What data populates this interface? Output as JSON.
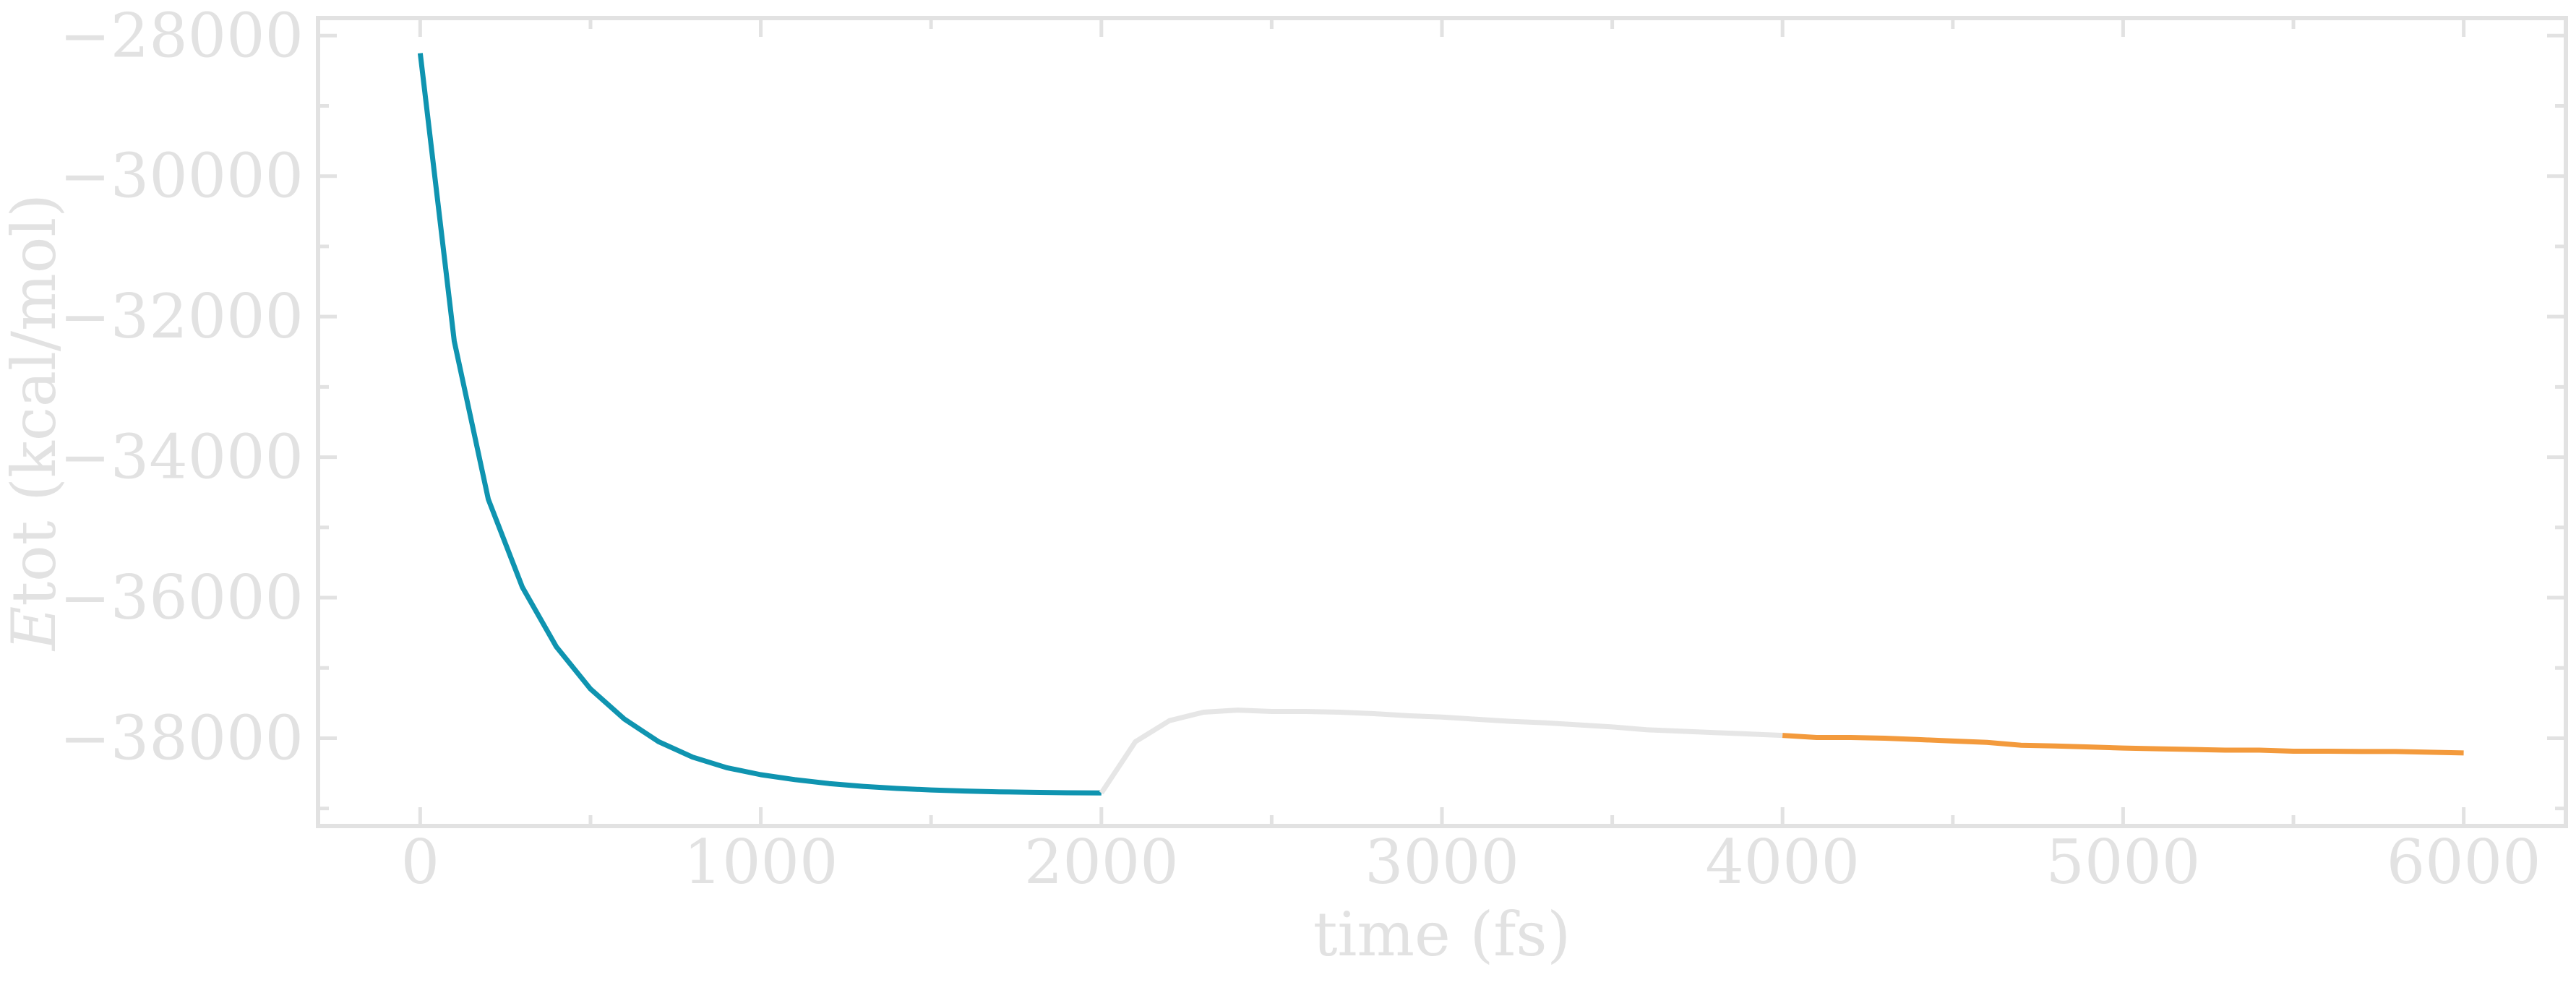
{
  "chart_data": {
    "type": "line",
    "xlabel": "time (fs)",
    "ylabel": "Etot (kcal/mol)",
    "ylabel_italic_part": "E",
    "ylabel_rest": "tot (kcal/mol)",
    "xlim": [
      -300,
      6300
    ],
    "ylim": [
      -39250,
      -27750
    ],
    "x_ticks": [
      0,
      1000,
      2000,
      3000,
      4000,
      5000,
      6000
    ],
    "x_tick_labels": [
      "0",
      "1000",
      "2000",
      "3000",
      "4000",
      "5000",
      "6000"
    ],
    "x_minor_ticks": [
      500,
      1500,
      2500,
      3500,
      4500,
      5500
    ],
    "y_ticks": [
      -28000,
      -30000,
      -32000,
      -34000,
      -36000,
      -38000
    ],
    "y_tick_labels": [
      "−28000",
      "−30000",
      "−32000",
      "−34000",
      "−36000",
      "−38000"
    ],
    "y_minor_ticks": [
      -29000,
      -31000,
      -33000,
      -35000,
      -37000,
      -39000
    ],
    "grid": false,
    "series": [
      {
        "color": "#0f94b0",
        "x": [
          0,
          100,
          200,
          300,
          400,
          500,
          600,
          700,
          800,
          900,
          1000,
          1100,
          1200,
          1300,
          1400,
          1500,
          1600,
          1700,
          1800,
          1900,
          2000
        ],
        "y": [
          -28250,
          -32350,
          -34600,
          -35850,
          -36700,
          -37300,
          -37730,
          -38050,
          -38270,
          -38420,
          -38520,
          -38590,
          -38645,
          -38685,
          -38715,
          -38737,
          -38752,
          -38763,
          -38771,
          -38777,
          -38780
        ]
      },
      {
        "color": "#e6e6e6",
        "x": [
          2000,
          2100,
          2200,
          2300,
          2400,
          2500,
          2600,
          2700,
          2800,
          2900,
          3000,
          3100,
          3200,
          3300,
          3400,
          3500,
          3600,
          3700,
          3800,
          3900,
          4000
        ],
        "y": [
          -38780,
          -38050,
          -37750,
          -37630,
          -37600,
          -37620,
          -37620,
          -37630,
          -37650,
          -37680,
          -37700,
          -37730,
          -37760,
          -37780,
          -37810,
          -37840,
          -37880,
          -37900,
          -37920,
          -37940,
          -37960
        ]
      },
      {
        "color": "#f39a3c",
        "x": [
          4000,
          4100,
          4200,
          4300,
          4400,
          4500,
          4600,
          4700,
          4800,
          4900,
          5000,
          5100,
          5200,
          5300,
          5400,
          5500,
          5600,
          5700,
          5800,
          5900,
          6000
        ],
        "y": [
          -37960,
          -37990,
          -37990,
          -38000,
          -38020,
          -38040,
          -38060,
          -38100,
          -38110,
          -38125,
          -38140,
          -38150,
          -38160,
          -38170,
          -38170,
          -38185,
          -38185,
          -38190,
          -38190,
          -38200,
          -38210
        ]
      }
    ]
  }
}
